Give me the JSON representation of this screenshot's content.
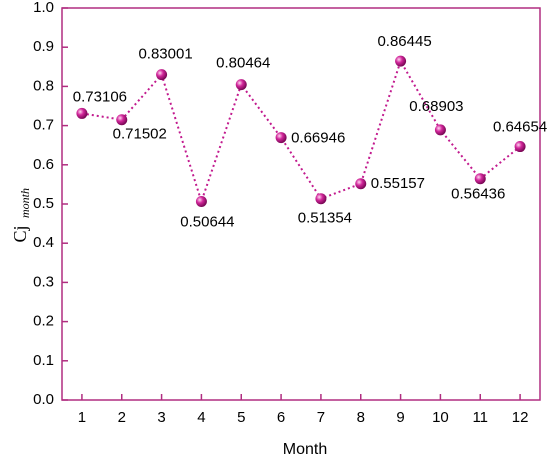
{
  "chart_data": {
    "type": "line",
    "xlabel": "Month",
    "ylabel": "Cj",
    "ylabel_sub": "month",
    "categories": [
      "1",
      "2",
      "3",
      "4",
      "5",
      "6",
      "7",
      "8",
      "9",
      "10",
      "11",
      "12"
    ],
    "values": [
      0.73106,
      0.71502,
      0.83001,
      0.50644,
      0.80464,
      0.66946,
      0.51354,
      0.55157,
      0.86445,
      0.68903,
      0.56436,
      0.64654
    ],
    "color": "#c21a8e",
    "ylim": [
      0,
      1
    ],
    "yticks": [
      {
        "value": 0,
        "label": "0.0"
      },
      0.1,
      0.2,
      0.3,
      0.4,
      0.5,
      0.6,
      0.7,
      0.8,
      0.9,
      {
        "value": 1,
        "label": "1.0"
      }
    ]
  }
}
